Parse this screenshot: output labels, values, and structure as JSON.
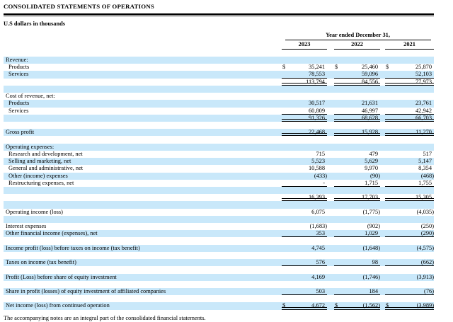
{
  "document": {
    "title": "CONSOLIDATED STATEMENTS OF OPERATIONS",
    "units_label": "U.S dollars in thousands",
    "footer_note": "The accompanying notes are an integral part of the consolidated financial statements."
  },
  "table": {
    "period_header": "Year ended December 31,",
    "year_columns": [
      "2023",
      "2022",
      "2021"
    ],
    "currency_symbol": "$",
    "shade_color": "#c9e8fa",
    "rows": [
      {
        "label": "Revenue:",
        "indent": false,
        "shade": true,
        "dollar": false,
        "underline": null,
        "values": null
      },
      {
        "label": "Products",
        "indent": true,
        "shade": false,
        "dollar": true,
        "underline": null,
        "values": [
          "35,241",
          "25,460",
          "25,870"
        ]
      },
      {
        "label": "Services",
        "indent": true,
        "shade": true,
        "dollar": false,
        "underline": "single",
        "values": [
          "78,553",
          "59,096",
          "52,103"
        ]
      },
      {
        "label": "",
        "indent": false,
        "shade": false,
        "dollar": false,
        "underline": "double",
        "values": [
          "113,794",
          "84,556",
          "77,973"
        ]
      },
      {
        "label": "",
        "indent": false,
        "shade": true,
        "dollar": false,
        "underline": null,
        "values": null
      },
      {
        "label": "Cost of revenue, net:",
        "indent": false,
        "shade": false,
        "dollar": false,
        "underline": null,
        "values": null
      },
      {
        "label": "Products",
        "indent": true,
        "shade": true,
        "dollar": false,
        "underline": null,
        "values": [
          "30,517",
          "21,631",
          "23,761"
        ]
      },
      {
        "label": "Services",
        "indent": true,
        "shade": false,
        "dollar": false,
        "underline": "single",
        "values": [
          "60,809",
          "46,997",
          "42,942"
        ]
      },
      {
        "label": "",
        "indent": false,
        "shade": true,
        "dollar": false,
        "underline": "double",
        "values": [
          "91,326",
          "68,628",
          "66,703"
        ]
      },
      {
        "label": "",
        "indent": false,
        "shade": false,
        "dollar": false,
        "underline": null,
        "values": null
      },
      {
        "label": "Gross profit",
        "indent": false,
        "shade": true,
        "dollar": false,
        "underline": "double",
        "values": [
          "22,468",
          "15,928",
          "11,270"
        ]
      },
      {
        "label": "",
        "indent": false,
        "shade": false,
        "dollar": false,
        "underline": null,
        "values": null
      },
      {
        "label": "Operating expenses:",
        "indent": false,
        "shade": true,
        "dollar": false,
        "underline": null,
        "values": null
      },
      {
        "label": "Research and development, net",
        "indent": true,
        "shade": false,
        "dollar": false,
        "underline": null,
        "values": [
          "715",
          "479",
          "517"
        ]
      },
      {
        "label": "Selling and marketing, net",
        "indent": true,
        "shade": true,
        "dollar": false,
        "underline": null,
        "values": [
          "5,523",
          "5,629",
          "5,147"
        ]
      },
      {
        "label": "General and administrative, net",
        "indent": true,
        "shade": false,
        "dollar": false,
        "underline": null,
        "values": [
          "10,588",
          "9,970",
          "8,354"
        ]
      },
      {
        "label": "Other (income) expenses",
        "indent": true,
        "shade": true,
        "dollar": false,
        "underline": null,
        "values": [
          "(433)",
          "(90)",
          "(468)"
        ]
      },
      {
        "label": "Restructuring expenses, net",
        "indent": true,
        "shade": false,
        "dollar": false,
        "underline": "single",
        "values": [
          "-",
          "1,715",
          "1,755"
        ]
      },
      {
        "label": "",
        "indent": false,
        "shade": true,
        "dollar": false,
        "underline": null,
        "values": null
      },
      {
        "label": "",
        "indent": false,
        "shade": false,
        "dollar": false,
        "underline": "double",
        "values": [
          "16,393",
          "17,703",
          "15,305"
        ]
      },
      {
        "label": "",
        "indent": false,
        "shade": true,
        "dollar": false,
        "underline": null,
        "values": null
      },
      {
        "label": "Operating income (loss)",
        "indent": false,
        "shade": false,
        "dollar": false,
        "underline": null,
        "values": [
          "6,075",
          "(1,775)",
          "(4,035)"
        ]
      },
      {
        "label": "",
        "indent": false,
        "shade": true,
        "dollar": false,
        "underline": null,
        "values": null
      },
      {
        "label": "Interest expenses",
        "indent": false,
        "shade": false,
        "dollar": false,
        "underline": null,
        "values": [
          "(1,683)",
          "(902)",
          "(250)"
        ]
      },
      {
        "label": "Other financial income (expenses), net",
        "indent": false,
        "shade": true,
        "dollar": false,
        "underline": "single",
        "values": [
          "353",
          "1,029",
          "(290)"
        ]
      },
      {
        "label": "",
        "indent": false,
        "shade": false,
        "dollar": false,
        "underline": null,
        "values": null
      },
      {
        "label": "Income profit (loss) before taxes on income (tax benefit)",
        "indent": false,
        "shade": true,
        "dollar": false,
        "underline": null,
        "values": [
          "4,745",
          "(1,648)",
          "(4,575)"
        ]
      },
      {
        "label": "",
        "indent": false,
        "shade": false,
        "dollar": false,
        "underline": null,
        "values": null
      },
      {
        "label": "Taxes on income (tax benefit)",
        "indent": false,
        "shade": true,
        "dollar": false,
        "underline": "single",
        "values": [
          "576",
          "98",
          "(662)"
        ]
      },
      {
        "label": "",
        "indent": false,
        "shade": false,
        "dollar": false,
        "underline": null,
        "values": null
      },
      {
        "label": "Profit (Loss) before share of equity investment",
        "indent": false,
        "shade": true,
        "dollar": false,
        "underline": null,
        "values": [
          "4,169",
          "(1,746)",
          "(3,913)"
        ]
      },
      {
        "label": "",
        "indent": false,
        "shade": false,
        "dollar": false,
        "underline": null,
        "values": null
      },
      {
        "label": "Share in profit (losses) of equity investment of affiliated companies",
        "indent": false,
        "shade": true,
        "dollar": false,
        "underline": "single",
        "values": [
          "503",
          "184",
          "(76)"
        ]
      },
      {
        "label": "",
        "indent": false,
        "shade": false,
        "dollar": false,
        "underline": null,
        "values": null
      },
      {
        "label": "Net income (loss) from continued operation",
        "indent": false,
        "shade": true,
        "dollar": true,
        "underline": "double",
        "values": [
          "4,672",
          "(1,562)",
          "(3,989)"
        ]
      }
    ]
  }
}
